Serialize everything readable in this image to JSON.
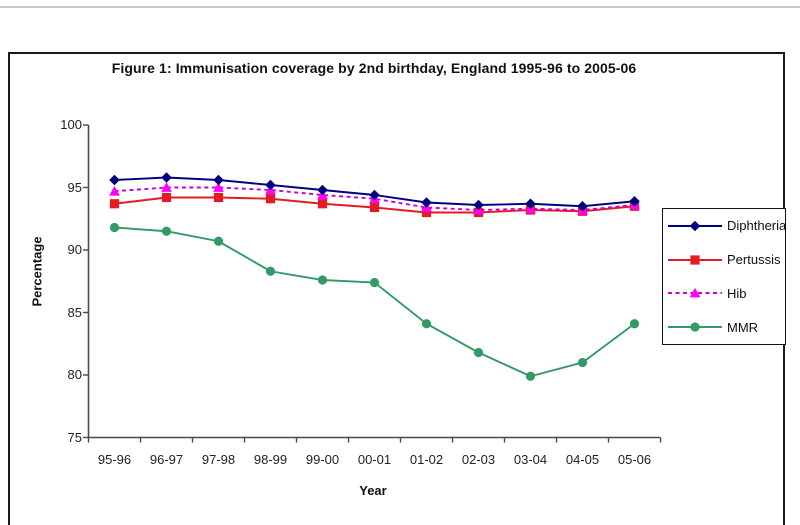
{
  "figure": {
    "top_rule_color": "#c9c9c9",
    "border_color": "#1a1a1a",
    "background": "#ffffff"
  },
  "chart_data": {
    "type": "line",
    "title": "Figure 1:  Immunisation coverage by 2nd birthday, England 1995-96 to 2005-06",
    "xlabel": "Year",
    "ylabel": "Percentage",
    "ylim": [
      75,
      100
    ],
    "yticks": [
      75,
      80,
      85,
      90,
      95,
      100
    ],
    "grid": false,
    "legend_position": "right",
    "axis_color": "#4a4a4a",
    "categories": [
      "95-96",
      "96-97",
      "97-98",
      "98-99",
      "99-00",
      "00-01",
      "01-02",
      "02-03",
      "03-04",
      "04-05",
      "05-06"
    ],
    "series": [
      {
        "name": "Diphtheria",
        "color": "#000080",
        "marker": "diamond",
        "line_style": "solid",
        "values": [
          95.6,
          95.8,
          95.6,
          95.2,
          94.8,
          94.4,
          93.8,
          93.6,
          93.7,
          93.5,
          93.9
        ]
      },
      {
        "name": "Pertussis",
        "color": "#e31b23",
        "marker": "square",
        "line_style": "solid",
        "values": [
          93.7,
          94.2,
          94.2,
          94.1,
          93.7,
          93.4,
          93.0,
          93.0,
          93.2,
          93.1,
          93.5
        ]
      },
      {
        "name": "Hib",
        "color": "#cc00cc",
        "marker_color": "#ff00ff",
        "marker": "triangle",
        "line_style": "dashed",
        "values": [
          94.7,
          95.0,
          95.0,
          94.8,
          94.4,
          94.1,
          93.4,
          93.2,
          93.3,
          93.2,
          93.6
        ]
      },
      {
        "name": "MMR",
        "color": "#339966",
        "marker": "circle",
        "line_style": "solid",
        "values": [
          91.8,
          91.5,
          90.7,
          88.3,
          87.6,
          87.4,
          84.1,
          81.8,
          79.9,
          81.0,
          84.1
        ]
      }
    ]
  }
}
